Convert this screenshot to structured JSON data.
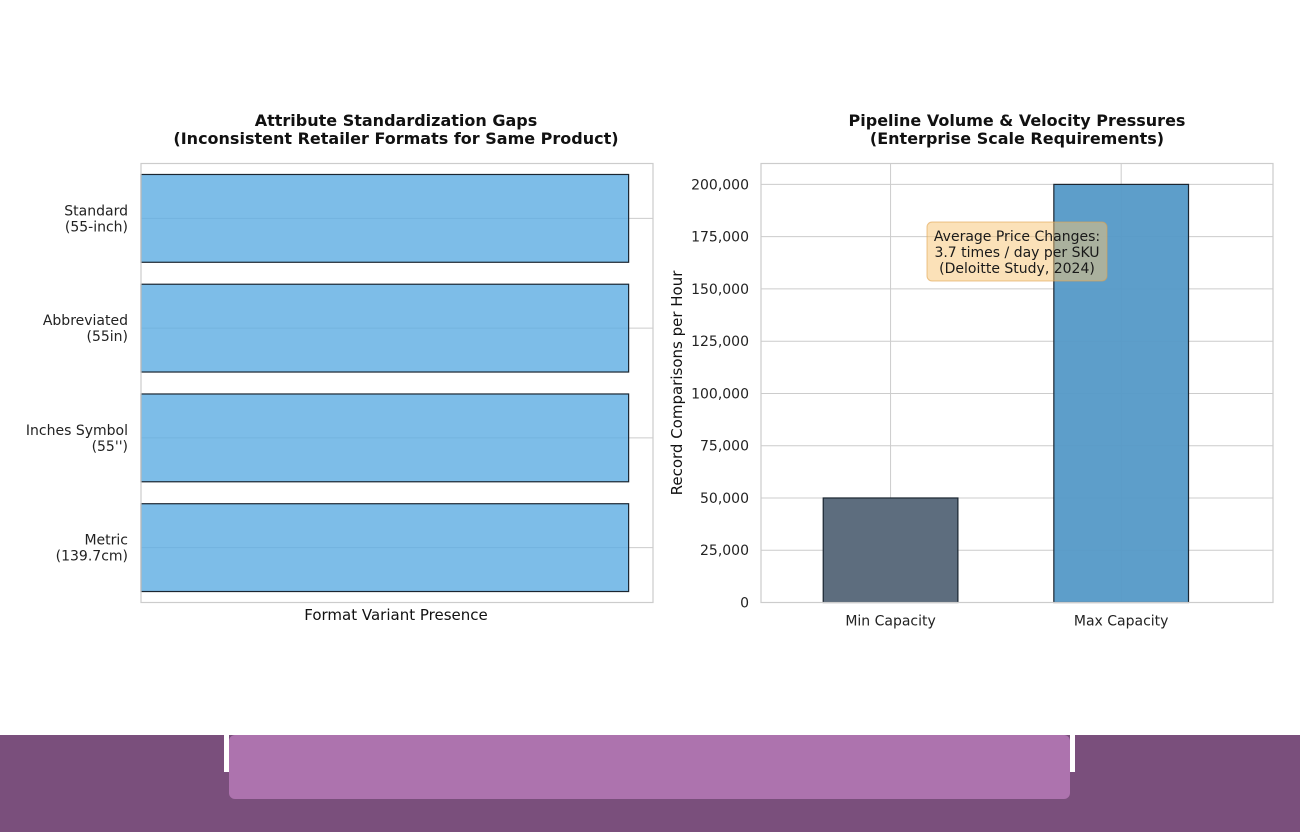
{
  "chart_data": [
    {
      "type": "bar",
      "orientation": "horizontal",
      "title": "Attribute Standardization Gaps",
      "subtitle": "(Inconsistent Retailer Formats for Same Product)",
      "xlabel": "Format Variant Presence",
      "ylabel": "",
      "categories": [
        [
          "Standard",
          "(55-inch)"
        ],
        [
          "Abbreviated",
          "(55in)"
        ],
        [
          "Inches Symbol",
          "(55'')"
        ],
        [
          "Metric",
          "(139.7cm)"
        ]
      ],
      "values": [
        1,
        1,
        1,
        1
      ],
      "xlim": [
        0,
        1.05
      ],
      "xticks_visible": false,
      "grid": true,
      "colors": {
        "bar": "#5dade2",
        "edge": "#1b2631"
      }
    },
    {
      "type": "bar",
      "title": "Pipeline Volume & Velocity Pressures",
      "subtitle": "(Enterprise Scale Requirements)",
      "xlabel": "",
      "ylabel": "Record Comparisons per Hour",
      "categories": [
        "Min Capacity",
        "Max Capacity"
      ],
      "values": [
        50000,
        200000
      ],
      "ylim": [
        0,
        210000
      ],
      "yticks": [
        0,
        25000,
        50000,
        75000,
        100000,
        125000,
        150000,
        175000,
        200000
      ],
      "ytick_labels": [
        "0",
        "25,000",
        "50,000",
        "75,000",
        "100,000",
        "125,000",
        "150,000",
        "175,000",
        "200,000"
      ],
      "grid": true,
      "colors": {
        "bars": [
          "#5d6d7e",
          "#5499c7"
        ],
        "edge": "#1b2631"
      },
      "annotation": {
        "lines": [
          "Average Price Changes:",
          "3.7 times / day per SKU",
          "(Deloitte Study, 2024)"
        ],
        "box_color": "#f8c471"
      }
    }
  ],
  "footer": {
    "band_color": "#7a4f7c",
    "panel_color": "#ad73ae"
  }
}
